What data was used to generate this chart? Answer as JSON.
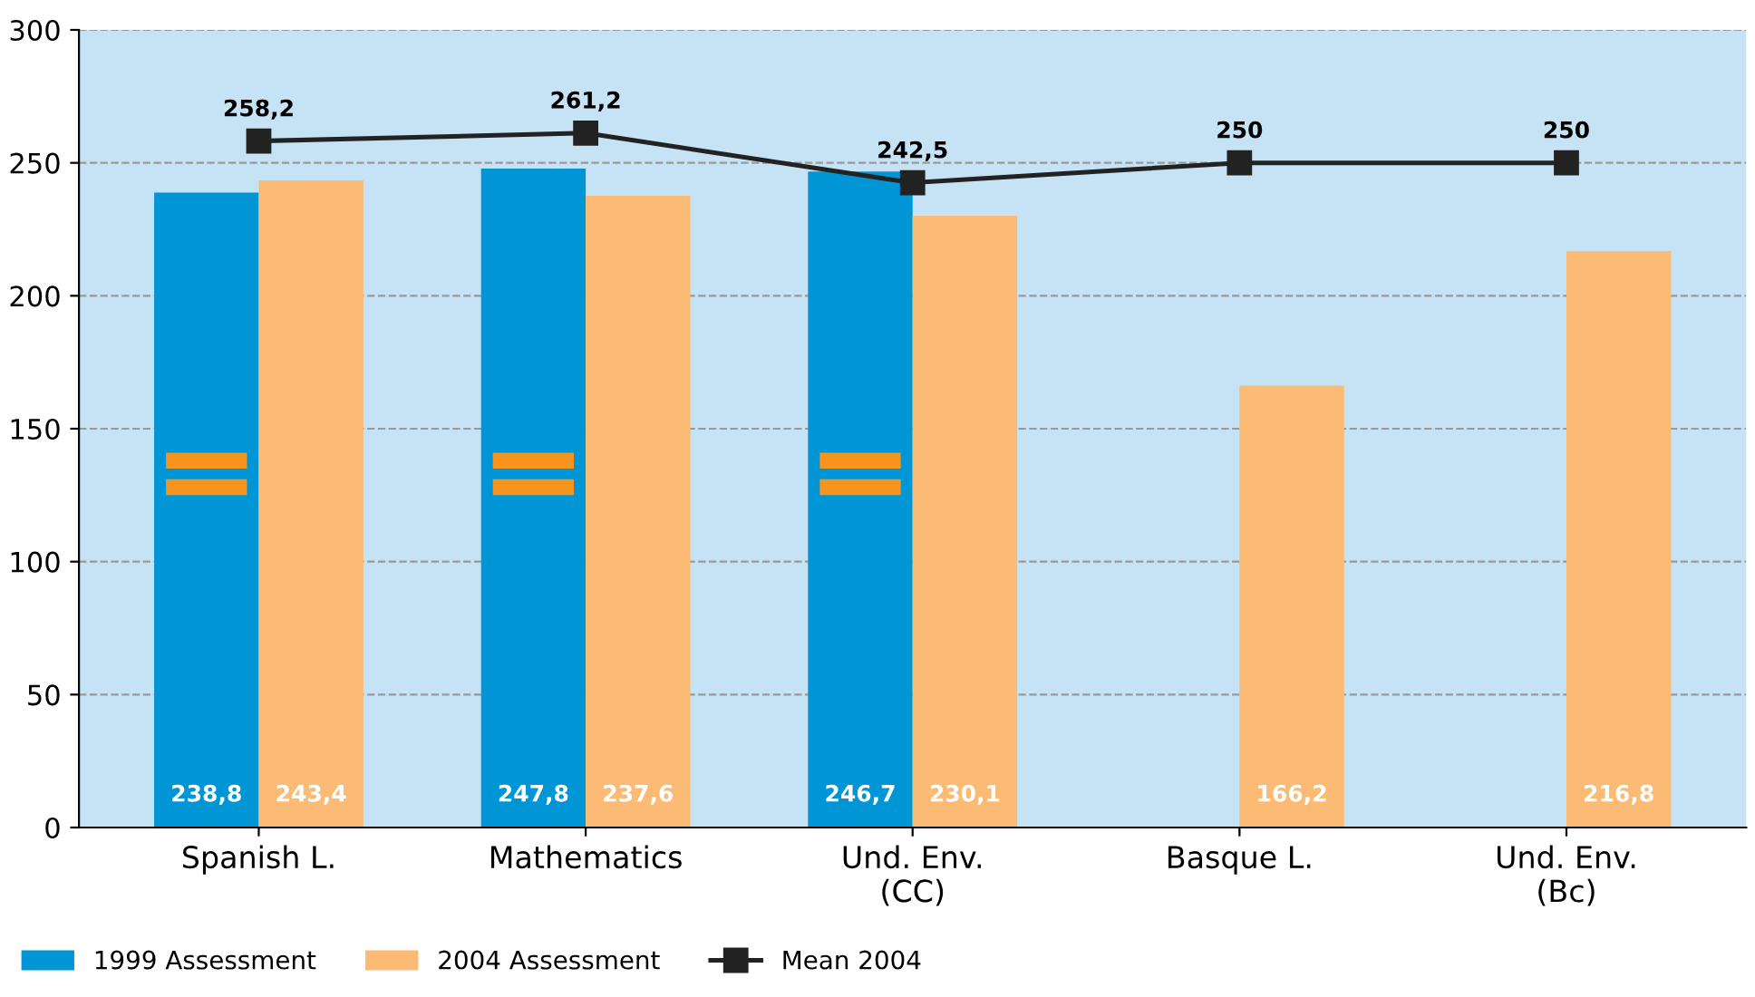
{
  "chart_data": {
    "type": "bar",
    "categories": [
      "Spanish L.",
      "Mathematics",
      "Und. Env.\n(CC)",
      "Basque L.",
      "Und. Env.\n(Bc)"
    ],
    "series": [
      {
        "name": "1999 Assessment",
        "color": "#0096d6",
        "values": [
          238.8,
          247.8,
          246.7,
          null,
          null
        ],
        "value_labels": [
          "238,8",
          "247,8",
          "246,7",
          null,
          null
        ]
      },
      {
        "name": "2004 Assessment",
        "color": "#fbbb74",
        "values": [
          243.4,
          237.6,
          230.1,
          166.2,
          216.8
        ],
        "value_labels": [
          "243,4",
          "237,6",
          "230,1",
          "166,2",
          "216,8"
        ]
      },
      {
        "name": "Mean 2004",
        "type": "line",
        "color": "#222222",
        "marker": "square",
        "values": [
          258.2,
          261.2,
          242.5,
          250,
          250
        ],
        "value_labels": [
          "258,2",
          "261,2",
          "242,5",
          "250",
          "250"
        ]
      }
    ],
    "ylim": [
      0,
      300
    ],
    "yticks": [
      0,
      50,
      100,
      150,
      200,
      250,
      300
    ],
    "grid": "y",
    "legend": "bottom"
  }
}
